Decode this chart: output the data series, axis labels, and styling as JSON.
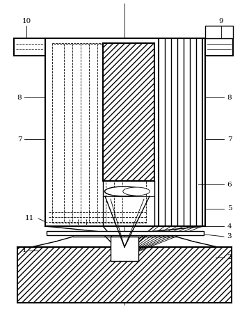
{
  "bg_color": "#ffffff",
  "lc": "#000000",
  "fig_w": 3.58,
  "fig_h": 4.44,
  "dpi": 100,
  "lw_thin": 0.6,
  "lw_med": 1.0,
  "lw_thick": 1.5
}
